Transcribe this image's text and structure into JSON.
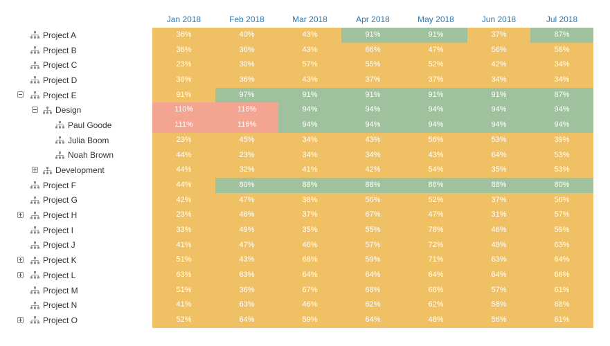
{
  "colors": {
    "normal": "#f0c164",
    "good": "#9fc19e",
    "over": "#f4a592",
    "header_text": "#2e79b0"
  },
  "months": [
    "Jan 2018",
    "Feb 2018",
    "Mar 2018",
    "Apr 2018",
    "May 2018",
    "Jun 2018",
    "Jul 2018"
  ],
  "rows": [
    {
      "name": "Project A",
      "level": 0,
      "toggle": "none",
      "values": [
        "36%",
        "40%",
        "43%",
        "91%",
        "91%",
        "37%",
        "87%"
      ],
      "status": [
        "o",
        "o",
        "o",
        "g",
        "g",
        "o",
        "g"
      ]
    },
    {
      "name": "Project B",
      "level": 0,
      "toggle": "none",
      "values": [
        "36%",
        "36%",
        "43%",
        "66%",
        "47%",
        "56%",
        "56%"
      ],
      "status": [
        "o",
        "o",
        "o",
        "o",
        "o",
        "o",
        "o"
      ]
    },
    {
      "name": "Project C",
      "level": 0,
      "toggle": "none",
      "values": [
        "23%",
        "30%",
        "57%",
        "55%",
        "52%",
        "42%",
        "34%"
      ],
      "status": [
        "o",
        "o",
        "o",
        "o",
        "o",
        "o",
        "o"
      ]
    },
    {
      "name": "Project D",
      "level": 0,
      "toggle": "none",
      "values": [
        "36%",
        "36%",
        "43%",
        "37%",
        "37%",
        "34%",
        "34%"
      ],
      "status": [
        "o",
        "o",
        "o",
        "o",
        "o",
        "o",
        "o"
      ]
    },
    {
      "name": "Project E",
      "level": 0,
      "toggle": "minus",
      "values": [
        "91%",
        "97%",
        "91%",
        "91%",
        "91%",
        "91%",
        "87%"
      ],
      "status": [
        "o",
        "g",
        "g",
        "g",
        "g",
        "g",
        "g"
      ]
    },
    {
      "name": "Design",
      "level": 1,
      "toggle": "minus",
      "values": [
        "110%",
        "116%",
        "94%",
        "94%",
        "94%",
        "94%",
        "94%"
      ],
      "status": [
        "r",
        "r",
        "g",
        "g",
        "g",
        "g",
        "g"
      ]
    },
    {
      "name": "Paul Goode",
      "level": 2,
      "toggle": "none",
      "values": [
        "111%",
        "116%",
        "94%",
        "94%",
        "94%",
        "94%",
        "94%"
      ],
      "status": [
        "r",
        "r",
        "g",
        "g",
        "g",
        "g",
        "g"
      ]
    },
    {
      "name": "Julia Boom",
      "level": 2,
      "toggle": "none",
      "values": [
        "23%",
        "45%",
        "34%",
        "43%",
        "56%",
        "53%",
        "39%"
      ],
      "status": [
        "o",
        "o",
        "o",
        "o",
        "o",
        "o",
        "o"
      ]
    },
    {
      "name": "Noah Brown",
      "level": 2,
      "toggle": "none",
      "values": [
        "44%",
        "23%",
        "34%",
        "34%",
        "43%",
        "64%",
        "53%"
      ],
      "status": [
        "o",
        "o",
        "o",
        "o",
        "o",
        "o",
        "o"
      ]
    },
    {
      "name": "Development",
      "level": 1,
      "toggle": "plus",
      "values": [
        "44%",
        "32%",
        "41%",
        "42%",
        "54%",
        "35%",
        "53%"
      ],
      "status": [
        "o",
        "o",
        "o",
        "o",
        "o",
        "o",
        "o"
      ]
    },
    {
      "name": "Project F",
      "level": 0,
      "toggle": "none",
      "values": [
        "44%",
        "80%",
        "88%",
        "88%",
        "88%",
        "88%",
        "80%"
      ],
      "status": [
        "o",
        "g",
        "g",
        "g",
        "g",
        "g",
        "g"
      ]
    },
    {
      "name": "Project G",
      "level": 0,
      "toggle": "none",
      "values": [
        "42%",
        "47%",
        "38%",
        "56%",
        "52%",
        "37%",
        "56%"
      ],
      "status": [
        "o",
        "o",
        "o",
        "o",
        "o",
        "o",
        "o"
      ]
    },
    {
      "name": "Project H",
      "level": 0,
      "toggle": "plus",
      "values": [
        "23%",
        "46%",
        "37%",
        "67%",
        "47%",
        "31%",
        "57%"
      ],
      "status": [
        "o",
        "o",
        "o",
        "o",
        "o",
        "o",
        "o"
      ]
    },
    {
      "name": "Project I",
      "level": 0,
      "toggle": "none",
      "values": [
        "33%",
        "49%",
        "35%",
        "55%",
        "78%",
        "46%",
        "59%"
      ],
      "status": [
        "o",
        "o",
        "o",
        "o",
        "o",
        "o",
        "o"
      ]
    },
    {
      "name": "Project J",
      "level": 0,
      "toggle": "none",
      "values": [
        "41%",
        "47%",
        "46%",
        "57%",
        "72%",
        "48%",
        "63%"
      ],
      "status": [
        "o",
        "o",
        "o",
        "o",
        "o",
        "o",
        "o"
      ]
    },
    {
      "name": "Project K",
      "level": 0,
      "toggle": "plus",
      "values": [
        "51%",
        "43%",
        "68%",
        "59%",
        "71%",
        "63%",
        "64%"
      ],
      "status": [
        "o",
        "o",
        "o",
        "o",
        "o",
        "o",
        "o"
      ]
    },
    {
      "name": "Project L",
      "level": 0,
      "toggle": "plus",
      "values": [
        "63%",
        "63%",
        "64%",
        "64%",
        "64%",
        "64%",
        "66%"
      ],
      "status": [
        "o",
        "o",
        "o",
        "o",
        "o",
        "o",
        "o"
      ]
    },
    {
      "name": "Project M",
      "level": 0,
      "toggle": "none",
      "values": [
        "51%",
        "36%",
        "67%",
        "68%",
        "68%",
        "57%",
        "61%"
      ],
      "status": [
        "o",
        "o",
        "o",
        "o",
        "o",
        "o",
        "o"
      ]
    },
    {
      "name": "Project N",
      "level": 0,
      "toggle": "none",
      "values": [
        "41%",
        "63%",
        "46%",
        "62%",
        "62%",
        "58%",
        "68%"
      ],
      "status": [
        "o",
        "o",
        "o",
        "o",
        "o",
        "o",
        "o"
      ]
    },
    {
      "name": "Project O",
      "level": 0,
      "toggle": "plus",
      "values": [
        "52%",
        "64%",
        "59%",
        "64%",
        "48%",
        "56%",
        "61%"
      ],
      "status": [
        "o",
        "o",
        "o",
        "o",
        "o",
        "o",
        "o"
      ]
    }
  ]
}
